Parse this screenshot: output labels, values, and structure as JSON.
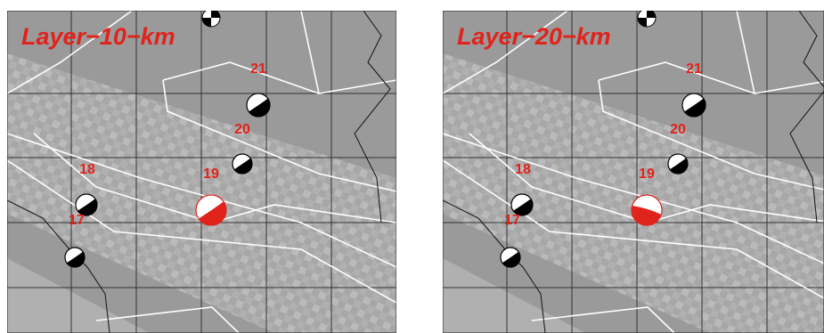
{
  "panels": [
    {
      "title": "Layer−10−km",
      "labels": [
        "21",
        "20",
        "18",
        "19",
        "17"
      ]
    },
    {
      "title": "Layer−20−km",
      "labels": [
        "21",
        "20",
        "18",
        "19",
        "17"
      ]
    }
  ]
}
